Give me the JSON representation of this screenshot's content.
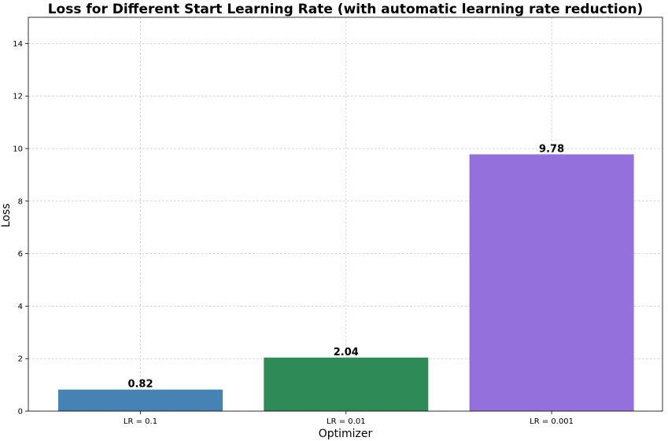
{
  "chart_data": {
    "type": "bar",
    "title": "Loss for Different Start Learning Rate (with automatic learning rate reduction)",
    "xlabel": "Optimizer",
    "ylabel": "Loss",
    "categories": [
      "LR = 0.1",
      "LR = 0.01",
      "LR = 0.001"
    ],
    "values": [
      0.82,
      2.04,
      9.78
    ],
    "value_labels": [
      "0.82",
      "2.04",
      "9.78"
    ],
    "colors": [
      "#4682b4",
      "#2e8b57",
      "#9370db"
    ],
    "ylim": [
      0,
      15
    ],
    "yticks": [
      0,
      2,
      4,
      6,
      8,
      10,
      12,
      14
    ],
    "grid": true
  }
}
